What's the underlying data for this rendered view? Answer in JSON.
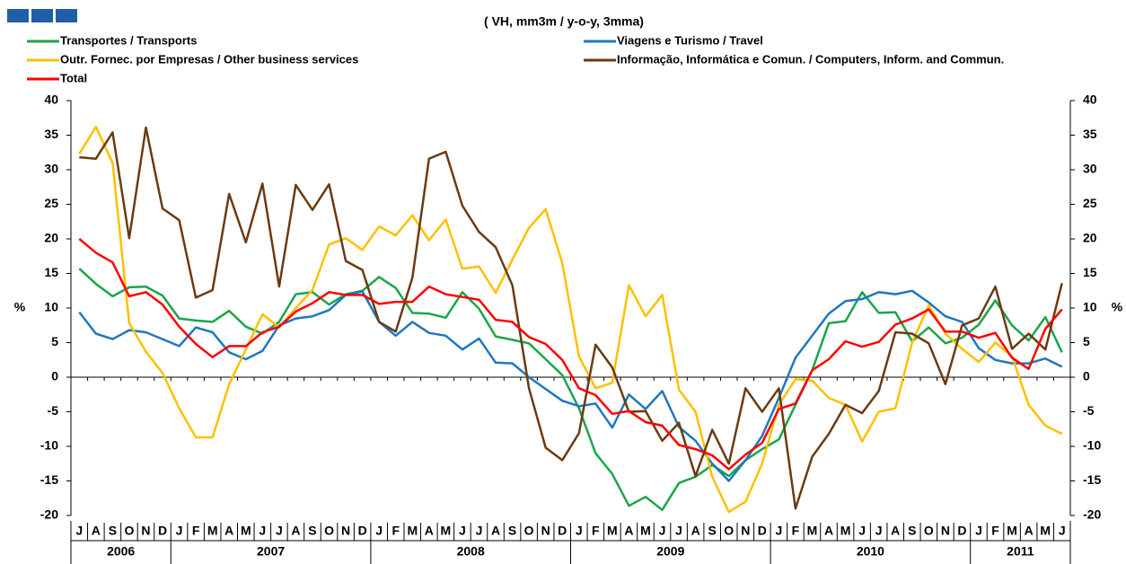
{
  "chart_data": {
    "type": "line",
    "subtitle": "( VH, mm3m / y-o-y, 3mma)",
    "y_label": "%",
    "y2_label": "%",
    "categories": [
      "J",
      "A",
      "S",
      "O",
      "N",
      "D",
      "J",
      "F",
      "M",
      "A",
      "M",
      "J",
      "J",
      "A",
      "S",
      "O",
      "N",
      "D",
      "J",
      "F",
      "M",
      "A",
      "M",
      "J",
      "J",
      "A",
      "S",
      "O",
      "N",
      "D",
      "J",
      "F",
      "M",
      "A",
      "M",
      "J",
      "J",
      "A",
      "S",
      "O",
      "N",
      "D",
      "J",
      "F",
      "M",
      "A",
      "M",
      "J",
      "J",
      "A",
      "S",
      "O",
      "N",
      "D",
      "J",
      "F",
      "M",
      "A",
      "M",
      "J"
    ],
    "years": [
      "2006",
      "2007",
      "2008",
      "2009",
      "2010",
      "2011"
    ],
    "ylim": [
      -20,
      40
    ],
    "yticks": [
      -20,
      -15,
      -10,
      -5,
      0,
      5,
      10,
      15,
      20,
      25,
      30,
      35,
      40
    ],
    "y2lim": [
      -20,
      40
    ],
    "y2ticks": [
      -20,
      -15,
      -10,
      -5,
      0,
      5,
      10,
      15,
      20,
      25,
      30,
      35,
      40
    ],
    "series": [
      {
        "name": "Transportes / Transports",
        "color": "#1aa64a",
        "values": [
          15.7,
          13.5,
          11.7,
          13,
          13.1,
          11.8,
          8.5,
          8.2,
          8,
          9.6,
          7.3,
          6.3,
          8,
          12,
          12.3,
          10.5,
          12,
          12.5,
          14.5,
          12.9,
          9.3,
          9.2,
          8.6,
          12.3,
          9.9,
          5.9,
          5.4,
          4.9,
          2.6,
          0.3,
          -4.5,
          -11,
          -14,
          -18.6,
          -17.3,
          -19.2,
          -15.3,
          -14.4,
          -12.7,
          -14.3,
          -12,
          -10.4,
          -9,
          -4,
          1,
          7.8,
          8.1,
          12.3,
          9.3,
          9.4,
          5.2,
          7.2,
          4.9,
          5.7,
          7.6,
          11.1,
          7.5,
          5.3,
          8.7,
          3.6
        ]
      },
      {
        "name": "Viagens e Turismo / Travel",
        "color": "#1f77c0",
        "values": [
          9.4,
          6.3,
          5.5,
          6.8,
          6.5,
          5.5,
          4.5,
          7.2,
          6.5,
          3.6,
          2.6,
          3.8,
          7.5,
          8.5,
          8.8,
          9.7,
          11.9,
          12.4,
          8,
          6,
          8,
          6.4,
          6,
          4,
          5.6,
          2.1,
          2,
          0,
          -1.7,
          -3.4,
          -4.2,
          -3.8,
          -7.3,
          -2.5,
          -4.6,
          -2,
          -7.2,
          -9.2,
          -12.5,
          -15,
          -12,
          -8.5,
          -3,
          2.8,
          6,
          9.2,
          11,
          11.3,
          12.3,
          12,
          12.5,
          10.8,
          8.8,
          8,
          4.2,
          2.5,
          2,
          2,
          2.7,
          1.5
        ]
      },
      {
        "name": "Outr. Fornec. por Empresas / Other business services",
        "color": "#ffc000",
        "values": [
          32.3,
          36.2,
          31,
          7.8,
          3.7,
          0.6,
          -4.5,
          -8.7,
          -8.7,
          -1,
          4,
          9.1,
          7.2,
          10,
          12.6,
          19.2,
          20.1,
          18.4,
          21.8,
          20.5,
          23.4,
          19.8,
          22.8,
          15.7,
          16,
          12.2,
          17,
          21.6,
          24.3,
          16.5,
          3,
          -1.6,
          -0.8,
          13.3,
          8.8,
          11.9,
          -1.8,
          -5,
          -14.4,
          -19.5,
          -18,
          -12.5,
          -4,
          -0.3,
          -0.5,
          -3,
          -4,
          -9.3,
          -5,
          -4.5,
          5,
          10.4,
          6.3,
          4.1,
          2.2,
          5,
          3,
          -4,
          -7,
          -8.2
        ]
      },
      {
        "name": "Informação, Informática e Comun. / Computers, Inform. and Commun.",
        "color": "#6b3a12",
        "values": [
          31.8,
          31.6,
          35.4,
          20.1,
          36.1,
          24.4,
          22.7,
          11.5,
          12.6,
          26.5,
          19.5,
          28,
          13.1,
          27.8,
          24.2,
          27.9,
          16.8,
          15.5,
          8,
          6.6,
          14.4,
          31.6,
          32.6,
          24.8,
          21,
          18.8,
          13.3,
          -1.6,
          -10.2,
          -12,
          -8.1,
          4.7,
          1.4,
          -5,
          -4.9,
          -9.2,
          -6.6,
          -14.3,
          -7.6,
          -12.5,
          -1.6,
          -5,
          -1.6,
          -19,
          -11.5,
          -8.2,
          -4,
          -5.2,
          -2,
          6.5,
          6.3,
          4.9,
          -1,
          7.5,
          8.5,
          13.1,
          4.1,
          6.3,
          4,
          13.6
        ]
      },
      {
        "name": "Total",
        "color": "#ff0000",
        "values": [
          20,
          18,
          16.6,
          11.7,
          12.3,
          10.5,
          7.3,
          4.8,
          2.9,
          4.5,
          4.5,
          6.5,
          7.3,
          9.5,
          10.7,
          12.3,
          11.9,
          11.9,
          10.6,
          10.9,
          10.9,
          13.1,
          12,
          11.6,
          11.2,
          8.3,
          8,
          5.8,
          4.8,
          2.5,
          -1.6,
          -2.6,
          -5.3,
          -4.9,
          -6.5,
          -7,
          -9.8,
          -10.4,
          -11.3,
          -13.3,
          -11.2,
          -9.5,
          -4.6,
          -3.8,
          1,
          2.6,
          5.2,
          4.4,
          5.1,
          7.6,
          8.5,
          9.8,
          6.6,
          6.6,
          5.7,
          6.4,
          2.8,
          1.2,
          7,
          9.8
        ]
      }
    ]
  }
}
